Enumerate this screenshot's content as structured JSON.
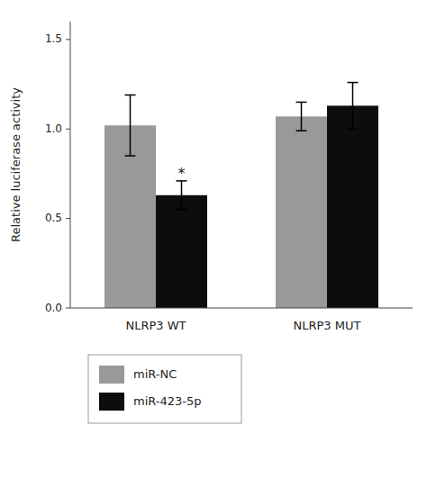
{
  "chart_data": {
    "type": "bar",
    "categories": [
      "NLRP3 WT",
      "NLRP3 MUT"
    ],
    "series": [
      {
        "name": "miR-NC",
        "color": "#999999",
        "values": [
          1.02,
          1.07
        ],
        "errors": [
          0.17,
          0.08
        ]
      },
      {
        "name": "miR-423-5p",
        "color": "#0d0d0d",
        "values": [
          0.63,
          1.13
        ],
        "errors": [
          0.08,
          0.13
        ]
      }
    ],
    "ylabel": "Relative luciferase activity",
    "ylim": [
      0.0,
      1.6
    ],
    "yticks": [
      {
        "value": 0.0,
        "label": "0.0"
      },
      0.5,
      {
        "value": 1.0,
        "label": "1.0"
      },
      1.5
    ],
    "annotations": [
      {
        "text": "*",
        "category": "NLRP3 WT",
        "series": "miR-423-5p"
      }
    ],
    "grid": false,
    "legend": "bottom"
  }
}
